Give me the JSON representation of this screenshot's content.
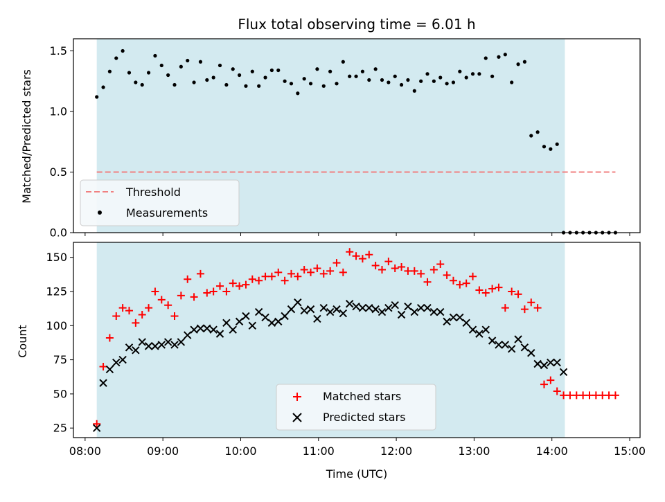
{
  "chart_data": {
    "title": "Flux total observing time = 6.01 h",
    "xlabel": "Time (UTC)",
    "x_ticks": [
      "08:00",
      "09:00",
      "10:00",
      "11:00",
      "12:00",
      "13:00",
      "14:00",
      "15:00"
    ],
    "xlim": [
      "07:51",
      "15:08"
    ],
    "observing_window": [
      "08:09",
      "14:10"
    ],
    "colors": {
      "window": "#d3eaf0",
      "threshold": "#f08080",
      "measurements": "#000000",
      "matched": "#ff0000",
      "predicted": "#000000"
    },
    "charts": [
      {
        "type": "scatter",
        "ylabel": "Matched/Predicted stars",
        "ylim": [
          0,
          1.6
        ],
        "y_ticks": [
          "0.0",
          "0.5",
          "1.0",
          "1.5"
        ],
        "legend": {
          "placement": "lower-left",
          "entries": [
            "Threshold",
            "Measurements"
          ]
        },
        "threshold": {
          "name": "Threshold",
          "y": 0.5,
          "x_start": "08:09",
          "x_end": "14:49",
          "style": "dashed"
        },
        "series": [
          {
            "name": "Measurements",
            "marker": "dot",
            "x": [
              "08:09",
              "08:14",
              "08:19",
              "08:24",
              "08:29",
              "08:34",
              "08:39",
              "08:44",
              "08:49",
              "08:54",
              "08:59",
              "09:04",
              "09:09",
              "09:14",
              "09:19",
              "09:24",
              "09:29",
              "09:34",
              "09:39",
              "09:44",
              "09:49",
              "09:54",
              "09:59",
              "10:04",
              "10:09",
              "10:14",
              "10:19",
              "10:24",
              "10:29",
              "10:34",
              "10:39",
              "10:44",
              "10:49",
              "10:54",
              "10:59",
              "11:04",
              "11:09",
              "11:14",
              "11:19",
              "11:24",
              "11:29",
              "11:34",
              "11:39",
              "11:44",
              "11:49",
              "11:54",
              "11:59",
              "12:04",
              "12:09",
              "12:14",
              "12:19",
              "12:24",
              "12:29",
              "12:34",
              "12:39",
              "12:44",
              "12:49",
              "12:54",
              "12:59",
              "13:04",
              "13:09",
              "13:14",
              "13:19",
              "13:24",
              "13:29",
              "13:34",
              "13:39",
              "13:44",
              "13:49",
              "13:54",
              "13:59",
              "14:04",
              "14:09",
              "14:14",
              "14:19",
              "14:24",
              "14:29",
              "14:34",
              "14:39",
              "14:44",
              "14:49"
            ],
            "y": [
              1.12,
              1.2,
              1.33,
              1.44,
              1.5,
              1.32,
              1.24,
              1.22,
              1.32,
              1.46,
              1.38,
              1.3,
              1.22,
              1.37,
              1.42,
              1.24,
              1.41,
              1.26,
              1.28,
              1.38,
              1.22,
              1.35,
              1.3,
              1.21,
              1.33,
              1.21,
              1.28,
              1.34,
              1.34,
              1.25,
              1.23,
              1.15,
              1.27,
              1.23,
              1.35,
              1.21,
              1.33,
              1.23,
              1.41,
              1.29,
              1.29,
              1.33,
              1.26,
              1.35,
              1.26,
              1.24,
              1.29,
              1.22,
              1.26,
              1.17,
              1.25,
              1.31,
              1.25,
              1.28,
              1.23,
              1.24,
              1.33,
              1.28,
              1.31,
              1.31,
              1.44,
              1.29,
              1.45,
              1.47,
              1.24,
              1.39,
              1.41,
              0.8,
              0.83,
              0.71,
              0.69,
              0.73,
              0.0,
              0.0,
              0.0,
              0.0,
              0.0,
              0.0,
              0.0,
              0.0,
              0.0
            ]
          }
        ]
      },
      {
        "type": "scatter",
        "ylabel": "Count",
        "ylim": [
          18,
          161
        ],
        "y_ticks": [
          "25",
          "50",
          "75",
          "100",
          "125",
          "150"
        ],
        "legend": {
          "placement": "lower-center",
          "entries": [
            "Matched stars",
            "Predicted stars"
          ]
        },
        "series": [
          {
            "name": "Matched stars",
            "marker": "plus",
            "x": [
              "08:09",
              "08:14",
              "08:19",
              "08:24",
              "08:29",
              "08:34",
              "08:39",
              "08:44",
              "08:49",
              "08:54",
              "08:59",
              "09:04",
              "09:09",
              "09:14",
              "09:19",
              "09:24",
              "09:29",
              "09:34",
              "09:39",
              "09:44",
              "09:49",
              "09:54",
              "09:59",
              "10:04",
              "10:09",
              "10:14",
              "10:19",
              "10:24",
              "10:29",
              "10:34",
              "10:39",
              "10:44",
              "10:49",
              "10:54",
              "10:59",
              "11:04",
              "11:09",
              "11:14",
              "11:19",
              "11:24",
              "11:29",
              "11:34",
              "11:39",
              "11:44",
              "11:49",
              "11:54",
              "11:59",
              "12:04",
              "12:09",
              "12:14",
              "12:19",
              "12:24",
              "12:29",
              "12:34",
              "12:39",
              "12:44",
              "12:49",
              "12:54",
              "12:59",
              "13:04",
              "13:09",
              "13:14",
              "13:19",
              "13:24",
              "13:29",
              "13:34",
              "13:39",
              "13:44",
              "13:49",
              "13:54",
              "13:59",
              "14:04",
              "14:09",
              "14:14",
              "14:19",
              "14:24",
              "14:29",
              "14:34",
              "14:39",
              "14:44",
              "14:49"
            ],
            "y": [
              28,
              70,
              91,
              107,
              113,
              111,
              102,
              108,
              113,
              125,
              119,
              115,
              107,
              122,
              134,
              121,
              138,
              124,
              125,
              129,
              125,
              131,
              129,
              130,
              134,
              133,
              136,
              136,
              139,
              133,
              138,
              136,
              141,
              139,
              142,
              138,
              140,
              146,
              139,
              154,
              151,
              149,
              152,
              144,
              141,
              147,
              142,
              143,
              140,
              140,
              138,
              132,
              141,
              145,
              137,
              133,
              130,
              131,
              136,
              126,
              124,
              127,
              128,
              113,
              125,
              123,
              112,
              117,
              113,
              57,
              60,
              52,
              49,
              49,
              49,
              49,
              49,
              49,
              49,
              49,
              49
            ]
          },
          {
            "name": "Predicted stars",
            "marker": "x",
            "x": [
              "08:09",
              "08:14",
              "08:19",
              "08:24",
              "08:29",
              "08:34",
              "08:39",
              "08:44",
              "08:49",
              "08:54",
              "08:59",
              "09:04",
              "09:09",
              "09:14",
              "09:19",
              "09:24",
              "09:29",
              "09:34",
              "09:39",
              "09:44",
              "09:49",
              "09:54",
              "09:59",
              "10:04",
              "10:09",
              "10:14",
              "10:19",
              "10:24",
              "10:29",
              "10:34",
              "10:39",
              "10:44",
              "10:49",
              "10:54",
              "10:59",
              "11:04",
              "11:09",
              "11:14",
              "11:19",
              "11:24",
              "11:29",
              "11:34",
              "11:39",
              "11:44",
              "11:49",
              "11:54",
              "11:59",
              "12:04",
              "12:09",
              "12:14",
              "12:19",
              "12:24",
              "12:29",
              "12:34",
              "12:39",
              "12:44",
              "12:49",
              "12:54",
              "12:59",
              "13:04",
              "13:09",
              "13:14",
              "13:19",
              "13:24",
              "13:29",
              "13:34",
              "13:39",
              "13:44",
              "13:49",
              "13:54",
              "13:59",
              "14:04",
              "14:09"
            ],
            "y": [
              25,
              58,
              68,
              73,
              75,
              84,
              82,
              88,
              85,
              85,
              86,
              88,
              86,
              88,
              93,
              97,
              98,
              98,
              97,
              94,
              102,
              97,
              103,
              107,
              100,
              110,
              106,
              102,
              103,
              107,
              112,
              117,
              111,
              112,
              105,
              113,
              110,
              112,
              109,
              116,
              114,
              113,
              113,
              112,
              110,
              113,
              115,
              108,
              114,
              110,
              113,
              113,
              110,
              110,
              103,
              106,
              106,
              102,
              97,
              94,
              97,
              89,
              86,
              86,
              83,
              90,
              84,
              80,
              72,
              71,
              73,
              73,
              66
            ]
          }
        ]
      }
    ]
  }
}
